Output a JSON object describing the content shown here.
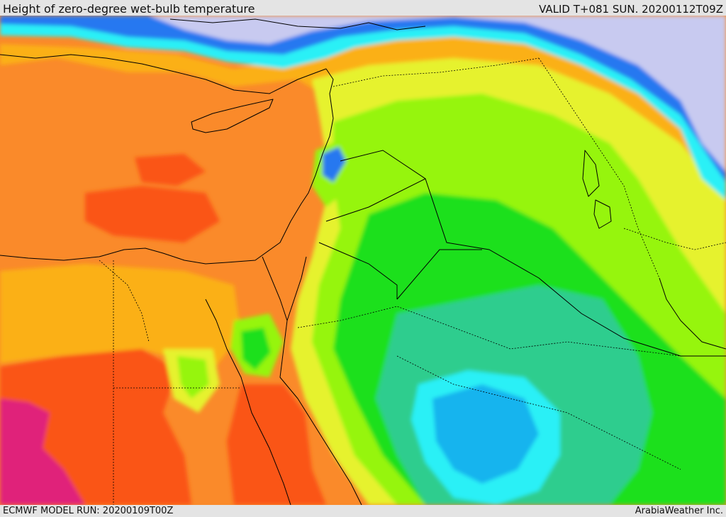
{
  "header": {
    "title": "Height of zero-degree wet-bulb temperature",
    "valid": "VALID T+081 SUN. 20200112T09Z"
  },
  "footer": {
    "model_run": "ECMWF MODEL RUN: 20200109T00Z",
    "credit": "ArabiaWeather Inc."
  },
  "colors": {
    "magenta": "#e0207a",
    "red": "#fa5419",
    "orange": "#fa8a2a",
    "amber": "#fbb014",
    "yellow": "#e6f22e",
    "lime": "#96f50c",
    "green": "#1fe01f",
    "teal": "#2dcd8e",
    "aqua": "#2af0f6",
    "sky": "#14b4ee",
    "blue": "#2878f0",
    "violet": "#7a6cf0",
    "lavender": "#c8caf0",
    "coast": "#000000"
  }
}
